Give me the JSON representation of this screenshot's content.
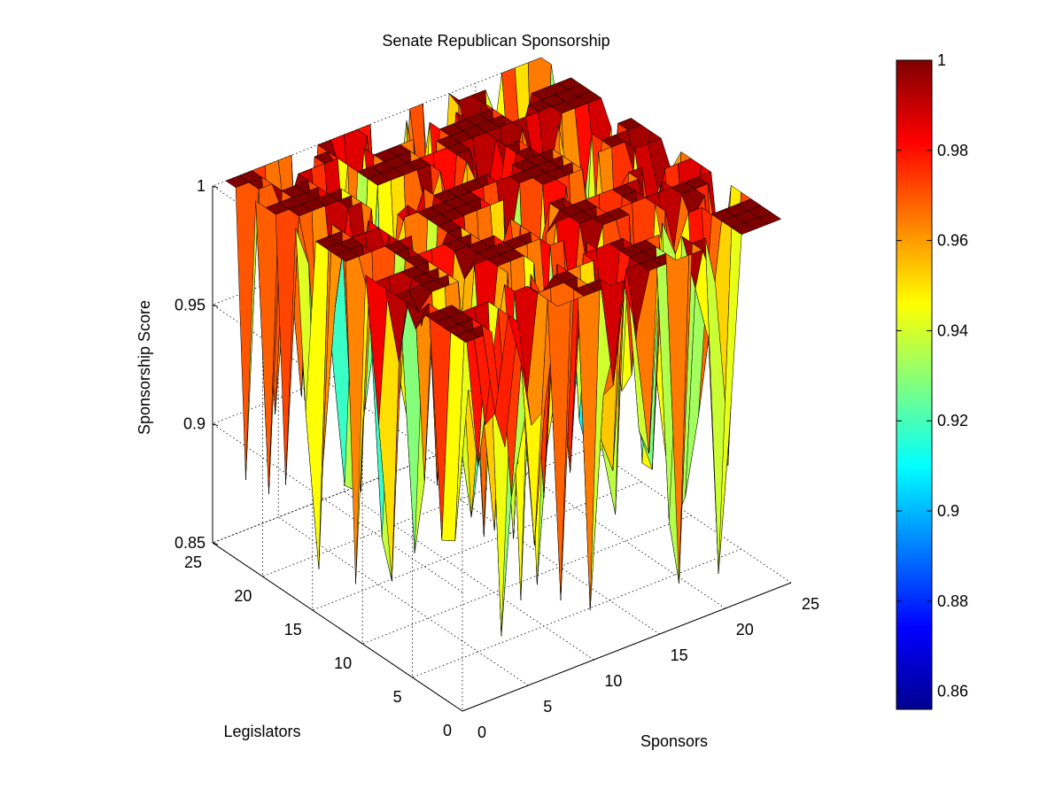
{
  "chart_data": {
    "type": "surface",
    "title": "Senate Republican Sponsorship",
    "xlabel": "Sponsors",
    "ylabel": "Legislators",
    "zlabel": "Sponsorship Score",
    "xlim": [
      0,
      25
    ],
    "ylim": [
      0,
      25
    ],
    "zlim": [
      0.85,
      1
    ],
    "x_ticks": [
      0,
      5,
      10,
      15,
      20,
      25
    ],
    "y_ticks": [
      0,
      5,
      10,
      15,
      20,
      25
    ],
    "z_ticks": [
      0.85,
      0.9,
      0.95,
      1
    ],
    "z_tick_labels": [
      "0.85",
      "0.9",
      "0.95",
      "1"
    ],
    "x_tick_labels": [
      "0",
      "5",
      "10",
      "15",
      "20",
      "25"
    ],
    "y_tick_labels": [
      "0",
      "5",
      "10",
      "15",
      "20",
      "25"
    ],
    "grid": true,
    "colormap": "jet",
    "colorbar": {
      "range": [
        0.856,
        1
      ],
      "ticks": [
        0.86,
        0.88,
        0.9,
        0.92,
        0.94,
        0.96,
        0.98,
        1
      ],
      "tick_labels": [
        "0.86",
        "0.88",
        "0.9",
        "0.92",
        "0.94",
        "0.96",
        "0.98",
        "1"
      ],
      "placement": "right"
    },
    "grid_size": [
      25,
      25
    ],
    "values_note_blocks": "surface values are mostly 1.0 with scattered lower cells between 0.856 and 0.99"
  }
}
